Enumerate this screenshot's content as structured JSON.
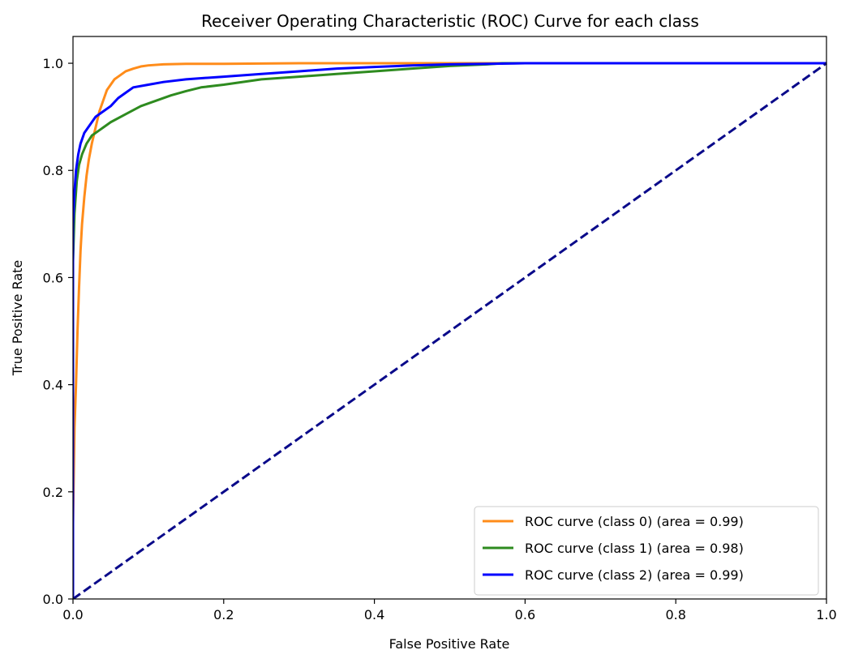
{
  "chart_data": {
    "type": "line",
    "title": "Receiver Operating Characteristic (ROC) Curve for each class",
    "xlabel": "False Positive Rate",
    "ylabel": "True Positive Rate",
    "xlim": [
      0.0,
      1.0
    ],
    "ylim": [
      0.0,
      1.05
    ],
    "xticks": [
      0.0,
      0.2,
      0.4,
      0.6,
      0.8,
      1.0
    ],
    "yticks": [
      0.0,
      0.2,
      0.4,
      0.6,
      0.8,
      1.0
    ],
    "xtick_labels": [
      "0.0",
      "0.2",
      "0.4",
      "0.6",
      "0.8",
      "1.0"
    ],
    "ytick_labels": [
      "0.0",
      "0.2",
      "0.4",
      "0.6",
      "0.8",
      "1.0"
    ],
    "grid": false,
    "legend_position": "lower-right",
    "series": [
      {
        "name": "ROC curve (class 0) (area = 0.99)",
        "color": "#ff8c1a",
        "style": "solid",
        "x": [
          0.0,
          0.0,
          0.002,
          0.004,
          0.006,
          0.008,
          0.01,
          0.012,
          0.015,
          0.018,
          0.021,
          0.025,
          0.03,
          0.035,
          0.04,
          0.045,
          0.05,
          0.055,
          0.06,
          0.07,
          0.08,
          0.09,
          0.1,
          0.12,
          0.15,
          0.2,
          0.3,
          0.5,
          0.55,
          1.0
        ],
        "y": [
          0.0,
          0.14,
          0.32,
          0.4,
          0.5,
          0.58,
          0.65,
          0.7,
          0.75,
          0.79,
          0.82,
          0.85,
          0.88,
          0.91,
          0.93,
          0.95,
          0.96,
          0.97,
          0.975,
          0.985,
          0.99,
          0.994,
          0.996,
          0.998,
          0.999,
          0.999,
          1.0,
          1.0,
          1.0,
          1.0
        ]
      },
      {
        "name": "ROC curve (class 1) (area = 0.98)",
        "color": "#2e8b1f",
        "style": "solid",
        "x": [
          0.0,
          0.0,
          0.002,
          0.005,
          0.008,
          0.012,
          0.018,
          0.025,
          0.035,
          0.05,
          0.07,
          0.09,
          0.11,
          0.13,
          0.15,
          0.17,
          0.2,
          0.25,
          0.3,
          0.35,
          0.4,
          0.45,
          0.5,
          0.55,
          0.57,
          1.0
        ],
        "y": [
          0.0,
          0.63,
          0.72,
          0.78,
          0.81,
          0.83,
          0.85,
          0.865,
          0.875,
          0.89,
          0.905,
          0.92,
          0.93,
          0.94,
          0.948,
          0.955,
          0.96,
          0.97,
          0.975,
          0.98,
          0.985,
          0.99,
          0.995,
          0.998,
          1.0,
          1.0
        ]
      },
      {
        "name": "ROC curve (class 2) (area = 0.99)",
        "color": "#0000ff",
        "style": "solid",
        "x": [
          0.0,
          0.0,
          0.002,
          0.004,
          0.007,
          0.01,
          0.015,
          0.02,
          0.025,
          0.03,
          0.04,
          0.05,
          0.06,
          0.07,
          0.08,
          0.1,
          0.12,
          0.15,
          0.2,
          0.25,
          0.3,
          0.35,
          0.4,
          0.45,
          0.5,
          0.55,
          0.6,
          1.0
        ],
        "y": [
          0.0,
          0.7,
          0.76,
          0.8,
          0.83,
          0.85,
          0.87,
          0.88,
          0.89,
          0.9,
          0.91,
          0.92,
          0.935,
          0.945,
          0.955,
          0.96,
          0.965,
          0.97,
          0.975,
          0.98,
          0.985,
          0.99,
          0.993,
          0.996,
          0.998,
          0.999,
          1.0,
          1.0
        ]
      },
      {
        "name": "",
        "color": "#0a0a8a",
        "style": "dashed",
        "x": [
          0.0,
          1.0
        ],
        "y": [
          0.0,
          1.0
        ]
      }
    ]
  }
}
